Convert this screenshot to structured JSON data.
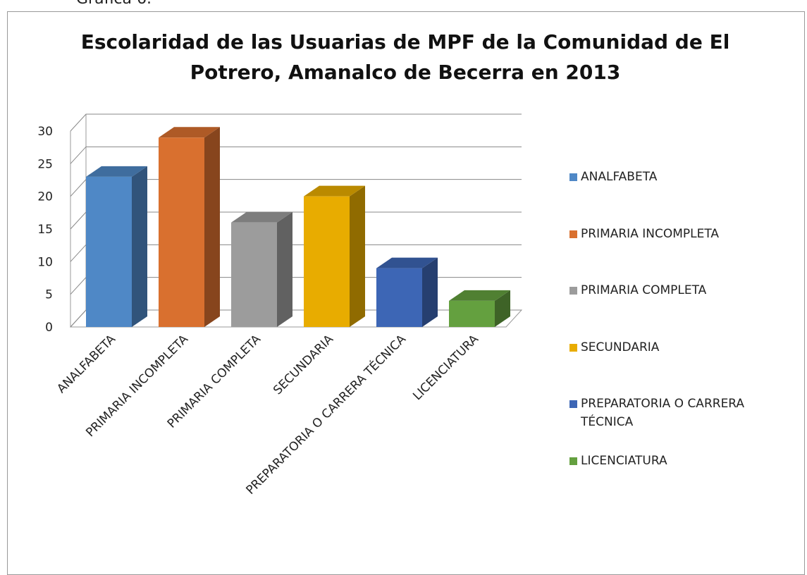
{
  "caption": "Gráfica 6.",
  "chart_data": {
    "type": "bar3d",
    "title": "Escolaridad de las Usuarias de MPF de la Comunidad de El Potrero, Amanalco de Becerra en 2013",
    "categories": [
      "ANALFABETA",
      "PRIMARIA INCOMPLETA",
      "PRIMARIA COMPLETA",
      "SECUNDARIA",
      "PREPARATORIA O CARRERA TÉCNICA",
      "LICENCIATURA"
    ],
    "values": [
      23,
      29,
      16,
      20,
      9,
      4
    ],
    "colors": [
      "#4f88c6",
      "#d9702f",
      "#9c9c9c",
      "#e8ac00",
      "#3d66b5",
      "#64a03f"
    ],
    "ylim": [
      0,
      30
    ],
    "yticks": [
      0,
      5,
      10,
      15,
      20,
      25,
      30
    ],
    "grid": true,
    "legend": "right"
  }
}
